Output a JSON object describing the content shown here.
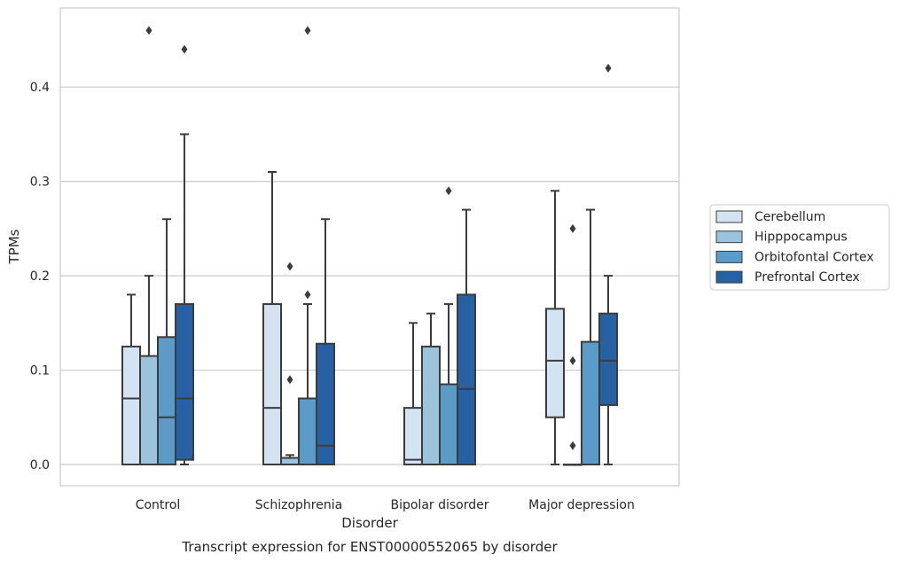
{
  "chart_data": {
    "type": "boxplot",
    "title": "",
    "caption": "Transcript expression for ENST00000552065 by disorder",
    "xlabel": "Disorder",
    "ylabel": "TPMs",
    "ylim": [
      -0.022,
      0.485
    ],
    "yticks": [
      0.0,
      0.1,
      0.2,
      0.3,
      0.4
    ],
    "ytick_labels": [
      "0.0",
      "0.1",
      "0.2",
      "0.3",
      "0.4"
    ],
    "grid": "horizontal",
    "legend_position": "right",
    "categories": [
      "Control",
      "Schizophrenia",
      "Bipolar disorder",
      "Major depression"
    ],
    "series": [
      {
        "name": "Cerebellum",
        "color": "#d4e3f1",
        "boxes": [
          {
            "whisker_low": 0.0,
            "q1": 0.0,
            "median": 0.07,
            "q3": 0.125,
            "whisker_high": 0.18,
            "outliers": []
          },
          {
            "whisker_low": 0.0,
            "q1": 0.0,
            "median": 0.06,
            "q3": 0.17,
            "whisker_high": 0.31,
            "outliers": []
          },
          {
            "whisker_low": 0.0,
            "q1": 0.0,
            "median": 0.005,
            "q3": 0.06,
            "whisker_high": 0.15,
            "outliers": []
          },
          {
            "whisker_low": 0.0,
            "q1": 0.05,
            "median": 0.11,
            "q3": 0.165,
            "whisker_high": 0.29,
            "outliers": []
          }
        ]
      },
      {
        "name": "Hipppocampus",
        "color": "#9cc3dc",
        "boxes": [
          {
            "whisker_low": 0.0,
            "q1": 0.0,
            "median": 0.0,
            "q3": 0.115,
            "whisker_high": 0.2,
            "outliers": [
              0.46
            ]
          },
          {
            "whisker_low": 0.0,
            "q1": 0.0,
            "median": 0.007,
            "q3": 0.007,
            "whisker_high": 0.01,
            "outliers": [
              0.09,
              0.21
            ]
          },
          {
            "whisker_low": 0.0,
            "q1": 0.0,
            "median": 0.0,
            "q3": 0.125,
            "whisker_high": 0.16,
            "outliers": []
          },
          {
            "whisker_low": 0.0,
            "q1": 0.0,
            "median": 0.0,
            "q3": 0.0,
            "whisker_high": 0.0,
            "outliers": [
              0.02,
              0.11,
              0.25
            ]
          }
        ]
      },
      {
        "name": "Orbitofontal Cortex",
        "color": "#5a9bc8",
        "boxes": [
          {
            "whisker_low": 0.0,
            "q1": 0.0,
            "median": 0.05,
            "q3": 0.135,
            "whisker_high": 0.26,
            "outliers": []
          },
          {
            "whisker_low": 0.0,
            "q1": 0.0,
            "median": 0.0,
            "q3": 0.07,
            "whisker_high": 0.17,
            "outliers": [
              0.18,
              0.46
            ]
          },
          {
            "whisker_low": 0.0,
            "q1": 0.0,
            "median": 0.0,
            "q3": 0.085,
            "whisker_high": 0.17,
            "outliers": [
              0.29
            ]
          },
          {
            "whisker_low": 0.0,
            "q1": 0.0,
            "median": 0.0,
            "q3": 0.13,
            "whisker_high": 0.27,
            "outliers": []
          }
        ]
      },
      {
        "name": "Prefrontal Cortex",
        "color": "#2662a3",
        "boxes": [
          {
            "whisker_low": 0.0,
            "q1": 0.005,
            "median": 0.07,
            "q3": 0.17,
            "whisker_high": 0.35,
            "outliers": [
              0.44
            ]
          },
          {
            "whisker_low": 0.0,
            "q1": 0.0,
            "median": 0.02,
            "q3": 0.128,
            "whisker_high": 0.26,
            "outliers": []
          },
          {
            "whisker_low": 0.0,
            "q1": 0.0,
            "median": 0.08,
            "q3": 0.18,
            "whisker_high": 0.27,
            "outliers": []
          },
          {
            "whisker_low": 0.0,
            "q1": 0.063,
            "median": 0.11,
            "q3": 0.16,
            "whisker_high": 0.2,
            "outliers": [
              0.42
            ]
          }
        ]
      }
    ]
  }
}
